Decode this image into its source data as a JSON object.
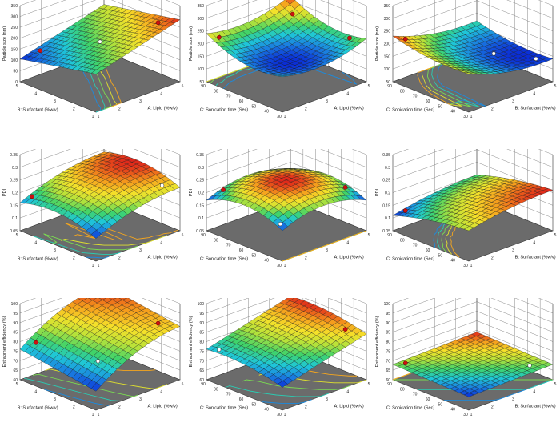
{
  "colors": {
    "floor": "#6b6b6b",
    "mesh": "#1a1a1a",
    "point": "#cc1111",
    "grid": "#888888",
    "colormap": [
      "#0a2bd6",
      "#1a7fe0",
      "#1fc8d8",
      "#3fd36a",
      "#b5e23a",
      "#f5e12a",
      "#f59a1c",
      "#e0241a"
    ]
  },
  "chart_data": [
    {
      "type": "surface",
      "xlabel": "A: Lipid (%w/v)",
      "ylabel": "B: Surfactant (%w/v)",
      "zlabel": "Particle size (nm)",
      "xticks": [
        "1",
        "2",
        "3",
        "4",
        "5"
      ],
      "yticks": [
        "1",
        "2",
        "3",
        "4",
        "5"
      ],
      "zticks": [
        "0",
        "50",
        "100",
        "150",
        "200",
        "250",
        "300",
        "350"
      ],
      "zlim": [
        0,
        350
      ],
      "xlim": [
        1,
        5
      ],
      "ylim": [
        1,
        5
      ],
      "surface": {
        "c": 195,
        "a": 55,
        "b": -35,
        "ab": 0,
        "a2": 0,
        "b2": 0
      },
      "points": [
        {
          "x": 1.6,
          "y": 4.6,
          "above": true
        },
        {
          "x": 4.5,
          "y": 1.6,
          "above": true
        },
        {
          "x": 3,
          "y": 3,
          "above": false
        }
      ]
    },
    {
      "type": "surface",
      "xlabel": "A: Lipid (%w/v)",
      "ylabel": "C: Sonication time (Sec)",
      "zlabel": "Particle size (nm)",
      "xticks": [
        "1",
        "2",
        "3",
        "4",
        "5"
      ],
      "yticks": [
        "30",
        "40",
        "50",
        "60",
        "70",
        "80",
        "90"
      ],
      "zticks": [
        "50",
        "100",
        "150",
        "200",
        "250",
        "300",
        "350"
      ],
      "zlim": [
        50,
        350
      ],
      "xlim": [
        1,
        5
      ],
      "ylim": [
        30,
        90
      ],
      "surface": {
        "c": 165,
        "a": 15,
        "b": 25,
        "ab": 0,
        "a2": 30,
        "b2": 35
      },
      "points": [
        {
          "x": 1.3,
          "y": 85,
          "above": true
        },
        {
          "x": 4.8,
          "y": 40,
          "above": true
        },
        {
          "x": 4.5,
          "y": 80,
          "above": true
        }
      ]
    },
    {
      "type": "surface",
      "xlabel": "B: Surfactant (%w/v)",
      "ylabel": "C: Sonication time (Sec)",
      "zlabel": "Particle size (nm)",
      "xticks": [
        "1",
        "2",
        "3",
        "4",
        "5"
      ],
      "yticks": [
        "30",
        "40",
        "50",
        "60",
        "70",
        "80",
        "90"
      ],
      "zticks": [
        "50",
        "100",
        "150",
        "200",
        "250",
        "300",
        "350"
      ],
      "zlim": [
        50,
        350
      ],
      "xlim": [
        1,
        5
      ],
      "ylim": [
        30,
        90
      ],
      "surface": {
        "c": 150,
        "a": -30,
        "b": 15,
        "ab": 0,
        "a2": 20,
        "b2": 15
      },
      "points": [
        {
          "x": 1.3,
          "y": 85,
          "above": true
        },
        {
          "x": 4.8,
          "y": 40,
          "above": false
        },
        {
          "x": 4,
          "y": 60,
          "above": false
        }
      ]
    },
    {
      "type": "surface",
      "xlabel": "A: Lipid (%w/v)",
      "ylabel": "B: Surfactant (%w/v)",
      "zlabel": "PDI",
      "xticks": [
        "1",
        "2",
        "3",
        "4",
        "5"
      ],
      "yticks": [
        "1",
        "2",
        "3",
        "4",
        "5"
      ],
      "zticks": [
        "0.05",
        "0.1",
        "0.15",
        "0.2",
        "0.25",
        "0.3",
        "0.35"
      ],
      "zlim": [
        0.05,
        0.35
      ],
      "xlim": [
        1,
        5
      ],
      "ylim": [
        1,
        5
      ],
      "surface": {
        "c": 0.24,
        "a": 0.04,
        "b": 0.01,
        "ab": 0,
        "a2": -0.02,
        "b2": -0.03
      },
      "points": [
        {
          "x": 1.3,
          "y": 4.7,
          "above": true
        },
        {
          "x": 4.6,
          "y": 1.5,
          "above": false
        }
      ]
    },
    {
      "type": "surface",
      "xlabel": "A: Lipid (%w/v)",
      "ylabel": "C: Sonication time (Sec)",
      "zlabel": "PDI",
      "xticks": [
        "1",
        "2",
        "3",
        "4",
        "5"
      ],
      "yticks": [
        "30",
        "40",
        "50",
        "60",
        "70",
        "80",
        "90"
      ],
      "zticks": [
        "0.05",
        "0.1",
        "0.15",
        "0.2",
        "0.25",
        "0.3",
        "0.35"
      ],
      "zlim": [
        0.05,
        0.35
      ],
      "xlim": [
        1,
        5
      ],
      "ylim": [
        30,
        90
      ],
      "surface": {
        "c": 0.25,
        "a": 0.0,
        "b": 0.0,
        "ab": 0,
        "a2": -0.04,
        "b2": -0.04
      },
      "points": [
        {
          "x": 1.5,
          "y": 85,
          "above": true
        },
        {
          "x": 4.6,
          "y": 40,
          "above": true
        },
        {
          "x": 1.2,
          "y": 35,
          "above": false
        }
      ]
    },
    {
      "type": "surface",
      "xlabel": "B: Surfactant (%w/v)",
      "ylabel": "C: Sonication time (Sec)",
      "zlabel": "PDI",
      "xticks": [
        "1",
        "2",
        "3",
        "4",
        "5"
      ],
      "yticks": [
        "30",
        "40",
        "50",
        "60",
        "70",
        "80",
        "90"
      ],
      "zticks": [
        "0.05",
        "0.1",
        "0.15",
        "0.2",
        "0.25",
        "0.3",
        "0.35"
      ],
      "zlim": [
        0.05,
        0.35
      ],
      "xlim": [
        1,
        5
      ],
      "ylim": [
        30,
        90
      ],
      "surface": {
        "c": 0.18,
        "a": 0.02,
        "b": -0.03,
        "ab": 0,
        "a2": -0.01,
        "b2": -0.01
      },
      "points": [
        {
          "x": 1.3,
          "y": 85,
          "above": true
        }
      ]
    },
    {
      "type": "surface",
      "xlabel": "A: Lipid (%w/v)",
      "ylabel": "B: Surfactant (%w/v)",
      "zlabel": "Entrapment efficiency (%)",
      "xticks": [
        "1",
        "2",
        "3",
        "4",
        "5"
      ],
      "yticks": [
        "1",
        "2",
        "3",
        "4",
        "5"
      ],
      "zticks": [
        "60",
        "65",
        "70",
        "75",
        "80",
        "85",
        "90",
        "95",
        "100"
      ],
      "zlim": [
        60,
        100
      ],
      "xlim": [
        1,
        5
      ],
      "ylim": [
        1,
        5
      ],
      "surface": {
        "c": 86,
        "a": 9,
        "b": 3,
        "ab": 0,
        "a2": -4,
        "b2": 0
      },
      "points": [
        {
          "x": 1.4,
          "y": 4.6,
          "above": true
        },
        {
          "x": 4.5,
          "y": 1.6,
          "above": true
        },
        {
          "x": 2,
          "y": 2,
          "above": false
        }
      ]
    },
    {
      "type": "surface",
      "xlabel": "A: Lipid (%w/v)",
      "ylabel": "C: Sonication time (Sec)",
      "zlabel": "Entrapment efficiency (%)",
      "xticks": [
        "1",
        "2",
        "3",
        "4",
        "5"
      ],
      "yticks": [
        "30",
        "40",
        "50",
        "60",
        "70",
        "80",
        "90"
      ],
      "zticks": [
        "60",
        "65",
        "70",
        "75",
        "80",
        "85",
        "90",
        "95",
        "100"
      ],
      "zlim": [
        60,
        100
      ],
      "xlim": [
        1,
        5
      ],
      "ylim": [
        30,
        90
      ],
      "surface": {
        "c": 82,
        "a": 6,
        "b": 2,
        "ab": 0,
        "a2": 0,
        "b2": -2
      },
      "points": [
        {
          "x": 4.6,
          "y": 40,
          "above": true
        },
        {
          "x": 1.3,
          "y": 85,
          "above": false
        }
      ]
    },
    {
      "type": "surface",
      "xlabel": "B: Surfactant (%w/v)",
      "ylabel": "C: Sonication time (Sec)",
      "zlabel": "Entrapment efficiency (%)",
      "xticks": [
        "1",
        "2",
        "3",
        "4",
        "5"
      ],
      "yticks": [
        "30",
        "40",
        "50",
        "60",
        "70",
        "80",
        "90"
      ],
      "zticks": [
        "60",
        "65",
        "70",
        "75",
        "80",
        "85",
        "90",
        "95",
        "100"
      ],
      "zlim": [
        60,
        100
      ],
      "xlim": [
        1,
        5
      ],
      "ylim": [
        30,
        90
      ],
      "surface": {
        "c": 68,
        "a": 0.5,
        "b": 0.5,
        "ab": 0,
        "a2": 0,
        "b2": 0
      },
      "points": [
        {
          "x": 1.3,
          "y": 85,
          "above": true
        },
        {
          "x": 4.5,
          "y": 40,
          "above": false
        }
      ]
    }
  ]
}
